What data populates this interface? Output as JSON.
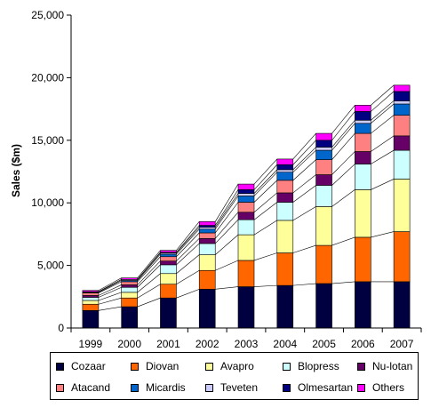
{
  "chart_data": {
    "type": "bar",
    "stacked": true,
    "categories": [
      "1999",
      "2000",
      "2001",
      "2002",
      "2003",
      "2004",
      "2005",
      "2006",
      "2007"
    ],
    "ylabel": "Sales ($m)",
    "xlabel": "",
    "ylim": [
      0,
      25000
    ],
    "yticks": [
      0,
      5000,
      10000,
      15000,
      20000,
      25000
    ],
    "ytick_labels": [
      "0",
      "5,000",
      "10,000",
      "15,000",
      "20,000",
      "25,000"
    ],
    "grid": false,
    "series_lines": true,
    "legend_position": "bottom",
    "series": [
      {
        "name": "Cozaar",
        "color": "#000040",
        "values": [
          1400,
          1700,
          2400,
          3100,
          3300,
          3400,
          3550,
          3700,
          3700
        ]
      },
      {
        "name": "Diovan",
        "color": "#FF6600",
        "values": [
          500,
          700,
          1100,
          1500,
          2100,
          2600,
          3050,
          3550,
          4000
        ]
      },
      {
        "name": "Avapro",
        "color": "#FFFF99",
        "values": [
          300,
          450,
          850,
          1250,
          2050,
          2600,
          3100,
          3800,
          4200
        ]
      },
      {
        "name": "Blopress",
        "color": "#CCFFFF",
        "values": [
          250,
          400,
          700,
          900,
          1200,
          1450,
          1700,
          2050,
          2300
        ]
      },
      {
        "name": "Nu-lotan",
        "color": "#660066",
        "values": [
          150,
          200,
          300,
          400,
          600,
          750,
          850,
          1000,
          1150
        ]
      },
      {
        "name": "Atacand",
        "color": "#FF8080",
        "values": [
          200,
          250,
          350,
          450,
          800,
          1000,
          1200,
          1450,
          1650
        ]
      },
      {
        "name": "Micardis",
        "color": "#0066CC",
        "values": [
          50,
          100,
          200,
          300,
          500,
          650,
          750,
          800,
          900
        ]
      },
      {
        "name": "Teveten",
        "color": "#CCCCFF",
        "values": [
          50,
          80,
          100,
          150,
          200,
          200,
          250,
          250,
          250
        ]
      },
      {
        "name": "Olmesartan",
        "color": "#000080",
        "values": [
          0,
          0,
          50,
          150,
          300,
          400,
          550,
          700,
          750
        ]
      },
      {
        "name": "Others",
        "color": "#FF00FF",
        "values": [
          100,
          120,
          150,
          300,
          450,
          450,
          550,
          500,
          500
        ]
      }
    ]
  }
}
